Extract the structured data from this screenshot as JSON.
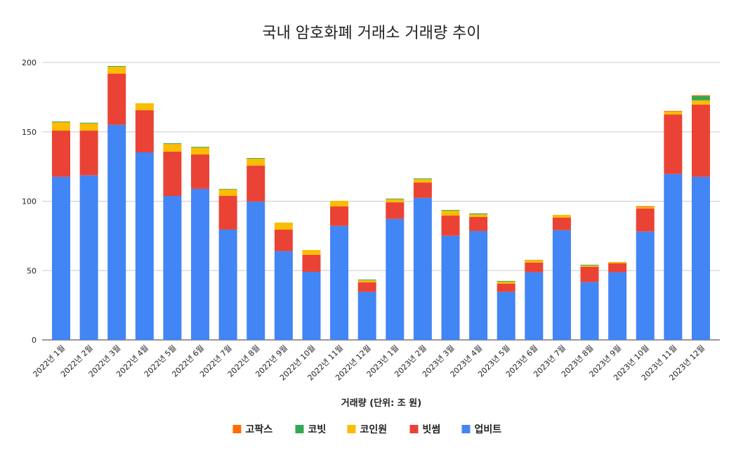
{
  "chart_data": {
    "type": "bar",
    "stacked": true,
    "title": "국내 암호화폐 거래소 거래량 추이",
    "xlabel": "거래량 (단위: 조 원)",
    "ylabel": "",
    "ylim": [
      0,
      200
    ],
    "yticks": [
      0,
      50,
      100,
      150,
      200
    ],
    "grid": true,
    "legend_position": "bottom",
    "categories": [
      "2022년 1월",
      "2022년 2월",
      "2022년 3월",
      "2022년 4월",
      "2022년 5월",
      "2022년 6월",
      "2022년 7월",
      "2022년 8월",
      "2022년 9월",
      "2022년 10월",
      "2022년 11월",
      "2022년 12월",
      "2023년 1월",
      "2023년 2월",
      "2023년 3월",
      "2023년 4월",
      "2023년 5월",
      "2023년 6월",
      "2023년 7월",
      "2023년 8월",
      "2023년 9월",
      "2023년 10월",
      "2023년 11월",
      "2023년 12월"
    ],
    "series": [
      {
        "name": "업비트",
        "color": "#4285f4",
        "values": [
          117.6,
          118.6,
          155.1,
          135.2,
          103.8,
          108.9,
          79.5,
          99.7,
          64.0,
          49.1,
          82.2,
          34.6,
          87.2,
          102.4,
          75.1,
          78.5,
          34.6,
          48.8,
          79.1,
          41.7,
          48.8,
          78.1,
          119.6,
          117.6
        ]
      },
      {
        "name": "빗썸",
        "color": "#ea4335",
        "values": [
          33.3,
          32.3,
          36.8,
          30.4,
          31.9,
          24.8,
          24.3,
          26.0,
          15.5,
          12.2,
          14.0,
          6.9,
          12.0,
          11.0,
          14.5,
          10.1,
          5.9,
          6.9,
          9.0,
          11.0,
          6.4,
          16.6,
          42.9,
          52.0
        ]
      },
      {
        "name": "코인원",
        "color": "#fbbc04",
        "values": [
          6.1,
          5.2,
          5.1,
          5.0,
          5.6,
          5.0,
          4.7,
          4.9,
          5.1,
          3.5,
          4.1,
          1.5,
          2.2,
          2.5,
          3.6,
          2.0,
          1.5,
          1.5,
          2.0,
          1.0,
          1.0,
          1.0,
          2.1,
          3.1
        ]
      },
      {
        "name": "코빗",
        "color": "#34a853",
        "values": [
          0.5,
          0.5,
          0.5,
          0,
          0.5,
          0.5,
          0.4,
          0.5,
          0,
          0,
          0,
          0.5,
          0.5,
          0.5,
          0.5,
          0.6,
          0.5,
          0,
          0,
          0.5,
          0,
          0,
          0,
          3.0
        ]
      },
      {
        "name": "고팍스",
        "color": "#ff6d01",
        "values": [
          0,
          0,
          0,
          0,
          0,
          0,
          0,
          0,
          0,
          0,
          0,
          0,
          0,
          0,
          0,
          0,
          0,
          0.4,
          0,
          0,
          0,
          0.7,
          0.5,
          0.7
        ]
      }
    ],
    "legend_order": [
      "고팍스",
      "코빗",
      "코인원",
      "빗썸",
      "업비트"
    ]
  }
}
